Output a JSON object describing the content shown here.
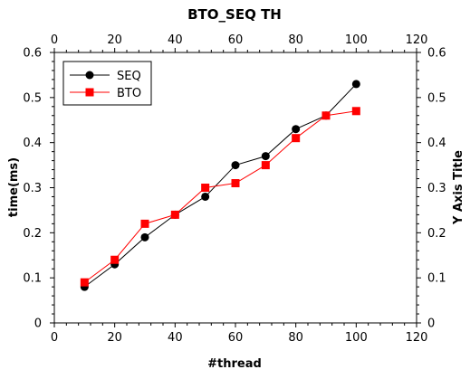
{
  "chart_data": {
    "type": "line",
    "title": "BTO_SEQ TH",
    "xlabel": "#thread",
    "ylabel": "time(ms)",
    "ylabel_right": "Y Axis Title",
    "xlim": [
      0,
      120
    ],
    "ylim": [
      0,
      0.6
    ],
    "xticks": [
      0,
      20,
      40,
      60,
      80,
      100,
      120
    ],
    "yticks": [
      0,
      0.1,
      0.2,
      0.3,
      0.4,
      0.5,
      0.6
    ],
    "xtick_labels": [
      "0",
      "20",
      "40",
      "60",
      "80",
      "100",
      "120"
    ],
    "ytick_labels": [
      "0",
      "0.1",
      "0.2",
      "0.3",
      "0.4",
      "0.5",
      "0.6"
    ],
    "grid": false,
    "legend_position": "top-left",
    "x": [
      10,
      20,
      30,
      40,
      50,
      60,
      70,
      80,
      90,
      100
    ],
    "series": [
      {
        "name": "SEQ",
        "values": [
          0.08,
          0.13,
          0.19,
          0.24,
          0.28,
          0.35,
          0.37,
          0.43,
          0.46,
          0.53
        ],
        "color": "#000000",
        "marker": "circle"
      },
      {
        "name": "BTO",
        "values": [
          0.09,
          0.14,
          0.22,
          0.24,
          0.3,
          0.31,
          0.35,
          0.41,
          0.46,
          0.47
        ],
        "color": "#ff0000",
        "marker": "square"
      }
    ]
  }
}
